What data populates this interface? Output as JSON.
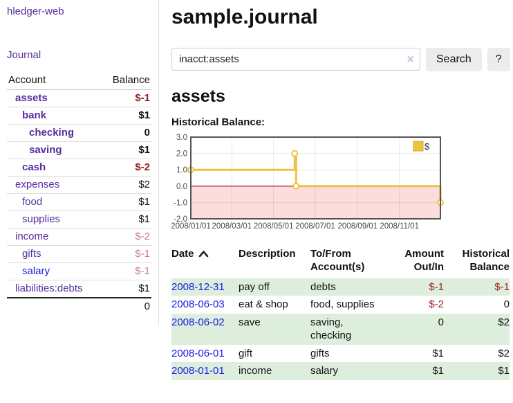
{
  "sidebar": {
    "app_title": "hledger-web",
    "nav": [
      {
        "label": "Journal"
      }
    ],
    "accounts_table": {
      "headers": {
        "account": "Account",
        "balance": "Balance"
      },
      "rows": [
        {
          "name": "assets",
          "balance": "$-1",
          "depth": 1,
          "bold": true,
          "neg": "strong"
        },
        {
          "name": "bank",
          "balance": "$1",
          "depth": 2,
          "bold": true,
          "neg": "none"
        },
        {
          "name": "checking",
          "balance": "0",
          "depth": 3,
          "bold": true,
          "neg": "none"
        },
        {
          "name": "saving",
          "balance": "$1",
          "depth": 3,
          "bold": true,
          "neg": "none"
        },
        {
          "name": "cash",
          "balance": "$-2",
          "depth": 2,
          "bold": true,
          "neg": "strong"
        },
        {
          "name": "expenses",
          "balance": "$2",
          "depth": 1,
          "bold": false,
          "neg": "none"
        },
        {
          "name": "food",
          "balance": "$1",
          "depth": 2,
          "bold": false,
          "neg": "none"
        },
        {
          "name": "supplies",
          "balance": "$1",
          "depth": 2,
          "bold": false,
          "neg": "none"
        },
        {
          "name": "income",
          "balance": "$-2",
          "depth": 1,
          "bold": false,
          "neg": "muted"
        },
        {
          "name": "gifts",
          "balance": "$-1",
          "depth": 2,
          "bold": false,
          "neg": "muted"
        },
        {
          "name": "salary",
          "balance": "$-1",
          "depth": 2,
          "bold": false,
          "neg": "muted",
          "link_color": "blue"
        },
        {
          "name": "liabilities:debts",
          "balance": "$1",
          "depth": 1,
          "bold": false,
          "neg": "none"
        }
      ],
      "total": "0"
    }
  },
  "header": {
    "title": "sample.journal"
  },
  "search": {
    "value": "inacct:assets",
    "clear_icon": "×",
    "button_label": "Search",
    "help_label": "?"
  },
  "account_page": {
    "heading": "assets",
    "chart_label": "Historical Balance:"
  },
  "chart_data": {
    "type": "line",
    "title": "Historical Balance:",
    "style": "step-line-with-markers",
    "series": [
      {
        "name": "$",
        "color": "#edc240",
        "points": [
          {
            "x": "2008-01-01",
            "y": 1
          },
          {
            "x": "2008-06-01",
            "y": 2
          },
          {
            "x": "2008-06-03",
            "y": 0
          },
          {
            "x": "2008-12-31",
            "y": -1
          }
        ]
      }
    ],
    "x_range": [
      "2008-01-01",
      "2008-12-31"
    ],
    "ylim": [
      -2.0,
      3.0
    ],
    "y_ticks": [
      3.0,
      2.0,
      1.0,
      0.0,
      -1.0,
      -2.0
    ],
    "x_ticks": [
      "2008/01/01",
      "2008/03/01",
      "2008/05/01",
      "2008/07/01",
      "2008/09/01",
      "2008/11/01"
    ],
    "grid": true,
    "legend": {
      "label": "$",
      "position": "top-right"
    },
    "negative_region_fill": "#fcdcdc",
    "zero_line_color": "#991515",
    "plot_border_color": "#545454"
  },
  "register_table": {
    "columns": [
      {
        "label": "Date",
        "align": "left",
        "sort": "asc"
      },
      {
        "label": "Description",
        "align": "left"
      },
      {
        "label": "To/From Account(s)",
        "align": "left"
      },
      {
        "label": "Amount Out/In",
        "align": "right"
      },
      {
        "label": "Historical Balance",
        "align": "right"
      }
    ],
    "rows": [
      {
        "date": "2008-12-31",
        "description": "pay off",
        "accounts": "debts",
        "amount": "$-1",
        "balance": "$-1",
        "amount_neg": true,
        "balance_neg": true
      },
      {
        "date": "2008-06-03",
        "description": "eat & shop",
        "accounts": "food, supplies",
        "amount": "$-2",
        "balance": "0",
        "amount_neg": true,
        "balance_neg": false
      },
      {
        "date": "2008-06-02",
        "description": "save",
        "accounts": "saving, checking",
        "amount": "0",
        "balance": "$2",
        "amount_neg": false,
        "balance_neg": false
      },
      {
        "date": "2008-06-01",
        "description": "gift",
        "accounts": "gifts",
        "amount": "$1",
        "balance": "$2",
        "amount_neg": false,
        "balance_neg": false
      },
      {
        "date": "2008-01-01",
        "description": "income",
        "accounts": "salary",
        "amount": "$1",
        "balance": "$1",
        "amount_neg": false,
        "balance_neg": false
      }
    ]
  },
  "colors": {
    "purple_link": "#552e9e",
    "blue_link": "#1a1ae6",
    "negative_strong": "#9c1a1a",
    "negative_muted": "#c87f7f",
    "table_negative": "#a32222",
    "row_stripe_green": "#ddeedd",
    "chart_line_gold": "#edc240",
    "chart_negative_region": "#fcdcdc",
    "chart_zero_line": "#991515",
    "button_bg": "#ececec"
  }
}
